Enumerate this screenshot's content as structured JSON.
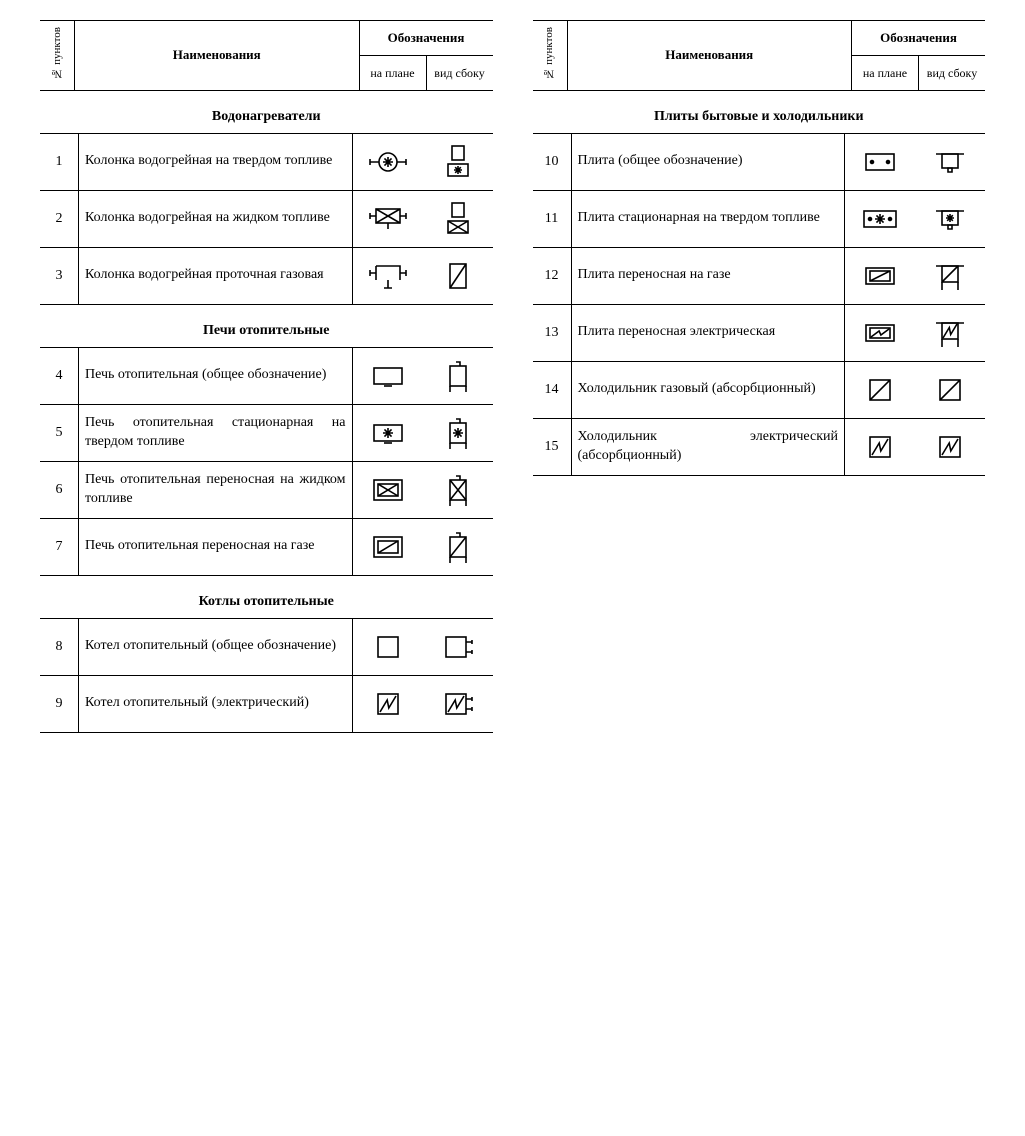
{
  "headers": {
    "num": "№ пунктов",
    "name": "Наименования",
    "group": "Обозначения",
    "plan": "на плане",
    "side": "вид сбоку"
  },
  "left": [
    {
      "title": "Водонагреватели",
      "rows": [
        {
          "num": "1",
          "name": "Колонка водогрейная на твердом топливе",
          "plan_icon": "circle-star-pipes",
          "side_icon": "rect-on-star-box"
        },
        {
          "num": "2",
          "name": "Колонка водогрейная на жидком топливе",
          "plan_icon": "x-rect-pipes",
          "side_icon": "rect-on-x-box"
        },
        {
          "num": "3",
          "name": "Колонка водогрейная проточная газовая",
          "plan_icon": "open-rect-pipe-tee",
          "side_icon": "diag-rect"
        }
      ]
    },
    {
      "title": "Печи отопительные",
      "rows": [
        {
          "num": "4",
          "name": "Печь отопительная (общее обозначение)",
          "plan_icon": "plain-rect-tick",
          "side_icon": "rect-legs-knob"
        },
        {
          "num": "5",
          "name": "Печь отопительная стационарная на твердом топливе",
          "plan_icon": "star-rect-tick",
          "side_icon": "star-rect-legs-knob"
        },
        {
          "num": "6",
          "name": "Печь отопительная переносная на жидком топливе",
          "plan_icon": "x-in-double-rect",
          "side_icon": "x-rect-legs-knob"
        },
        {
          "num": "7",
          "name": "Печь отопительная переносная на газе",
          "plan_icon": "diag-in-double-rect",
          "side_icon": "diag-rect-legs-knob"
        }
      ]
    },
    {
      "title": "Котлы отопительные",
      "rows": [
        {
          "num": "8",
          "name": "Котел отопительный (общее обозначение)",
          "plan_icon": "plain-square",
          "side_icon": "square-conn"
        },
        {
          "num": "9",
          "name": "Котел отопительный (электрический)",
          "plan_icon": "zig-square",
          "side_icon": "zig-square-conn"
        }
      ]
    }
  ],
  "right": [
    {
      "title": "Плиты бытовые и холодильники",
      "rows": [
        {
          "num": "10",
          "name": "Плита (общее обозначение)",
          "plan_icon": "rect-two-dots",
          "side_icon": "tee-rect"
        },
        {
          "num": "11",
          "name": "Плита стационарная на твердом топливе",
          "plan_icon": "dots-star-rect",
          "side_icon": "tee-star-rect"
        },
        {
          "num": "12",
          "name": "Плита переносная на газе",
          "plan_icon": "diag-in-double-rect2",
          "side_icon": "tee-diag-legs"
        },
        {
          "num": "13",
          "name": "Плита переносная электрическая",
          "plan_icon": "zig-in-double-rect",
          "side_icon": "tee-zig-legs"
        },
        {
          "num": "14",
          "name": "Холодильник газовый (абсорбционный)",
          "plan_icon": "diag-square",
          "side_icon": "diag-square"
        },
        {
          "num": "15",
          "name": "Холодильник электрический (абсорбционный)",
          "plan_icon": "zig-square",
          "side_icon": "zig-square"
        }
      ]
    }
  ]
}
